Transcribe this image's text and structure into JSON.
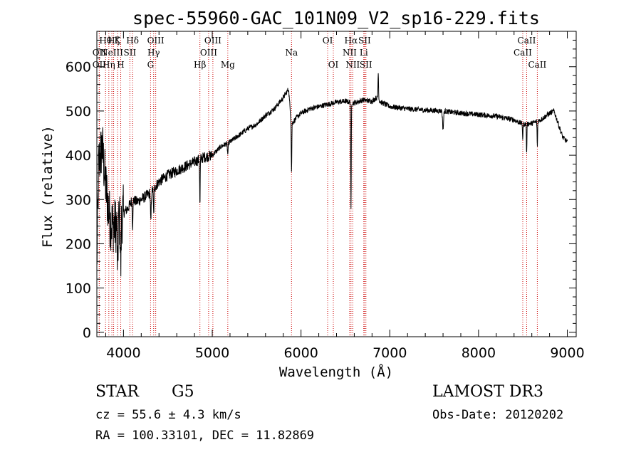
{
  "chart_data": {
    "type": "line",
    "title": "spec-55960-GAC_101N09_V2_sp16-229.fits",
    "xlabel": "Wavelength (Å)",
    "ylabel": "Flux (relative)",
    "xlim": [
      3700,
      9100
    ],
    "ylim": [
      -10,
      680
    ],
    "xticks": [
      4000,
      5000,
      6000,
      7000,
      8000,
      9000
    ],
    "yticks": [
      0,
      100,
      200,
      300,
      400,
      500,
      600
    ],
    "grid": false,
    "spectrum_anchors": [
      [
        3700,
        150
      ],
      [
        3720,
        380
      ],
      [
        3760,
        420
      ],
      [
        3800,
        330
      ],
      [
        3850,
        250
      ],
      [
        3900,
        240
      ],
      [
        3950,
        250
      ],
      [
        4000,
        270
      ],
      [
        4050,
        280
      ],
      [
        4100,
        300
      ],
      [
        4150,
        295
      ],
      [
        4200,
        300
      ],
      [
        4300,
        315
      ],
      [
        4400,
        340
      ],
      [
        4500,
        355
      ],
      [
        4600,
        365
      ],
      [
        4700,
        375
      ],
      [
        4800,
        385
      ],
      [
        4900,
        395
      ],
      [
        5000,
        400
      ],
      [
        5100,
        420
      ],
      [
        5200,
        430
      ],
      [
        5300,
        445
      ],
      [
        5400,
        460
      ],
      [
        5500,
        470
      ],
      [
        5600,
        490
      ],
      [
        5700,
        505
      ],
      [
        5800,
        530
      ],
      [
        5860,
        550
      ],
      [
        5890,
        470
      ],
      [
        5950,
        485
      ],
      [
        6000,
        495
      ],
      [
        6100,
        505
      ],
      [
        6200,
        510
      ],
      [
        6300,
        515
      ],
      [
        6400,
        520
      ],
      [
        6500,
        522
      ],
      [
        6600,
        518
      ],
      [
        6700,
        525
      ],
      [
        6800,
        522
      ],
      [
        6850,
        530
      ],
      [
        6900,
        520
      ],
      [
        7000,
        510
      ],
      [
        7200,
        505
      ],
      [
        7400,
        502
      ],
      [
        7600,
        500
      ],
      [
        7800,
        495
      ],
      [
        8000,
        492
      ],
      [
        8200,
        488
      ],
      [
        8400,
        480
      ],
      [
        8500,
        470
      ],
      [
        8600,
        472
      ],
      [
        8700,
        480
      ],
      [
        8800,
        495
      ],
      [
        8850,
        500
      ],
      [
        8900,
        470
      ],
      [
        8950,
        440
      ],
      [
        9000,
        430
      ]
    ],
    "absorption_features": [
      {
        "x": 3934,
        "depth": 120,
        "width": 6
      },
      {
        "x": 3969,
        "depth": 110,
        "width": 6
      },
      {
        "x": 4102,
        "depth": 60,
        "width": 5
      },
      {
        "x": 4308,
        "depth": 70,
        "width": 6
      },
      {
        "x": 4340,
        "depth": 60,
        "width": 5
      },
      {
        "x": 4861,
        "depth": 110,
        "width": 4
      },
      {
        "x": 5175,
        "depth": 25,
        "width": 6
      },
      {
        "x": 5893,
        "depth": 110,
        "width": 4
      },
      {
        "x": 6563,
        "depth": 250,
        "width": 4
      },
      {
        "x": 7600,
        "depth": 40,
        "width": 8
      },
      {
        "x": 8498,
        "depth": 35,
        "width": 4
      },
      {
        "x": 8542,
        "depth": 70,
        "width": 4
      },
      {
        "x": 8662,
        "depth": 60,
        "width": 4
      }
    ],
    "emission_features": [
      {
        "x": 6870,
        "height": 60,
        "width": 5
      }
    ],
    "line_markers": [
      {
        "x": 3727,
        "row": 1,
        "label": "OII"
      },
      {
        "x": 3727,
        "row": 2,
        "label": "OII"
      },
      {
        "x": 3798,
        "row": 0,
        "label": "Hθ"
      },
      {
        "x": 3835,
        "row": 2,
        "label": "Hη"
      },
      {
        "x": 3869,
        "row": 1,
        "label": "NeIII"
      },
      {
        "x": 3889,
        "row": 0,
        "label": "Hζ"
      },
      {
        "x": 3933,
        "row": 0,
        "label": "K"
      },
      {
        "x": 3969,
        "row": 2,
        "label": "H"
      },
      {
        "x": 4072,
        "row": 1,
        "label": "SII"
      },
      {
        "x": 4102,
        "row": 0,
        "label": "Hδ"
      },
      {
        "x": 4305,
        "row": 2,
        "label": "G"
      },
      {
        "x": 4340,
        "row": 1,
        "label": "Hγ"
      },
      {
        "x": 4363,
        "row": 0,
        "label": "OIII"
      },
      {
        "x": 4861,
        "row": 2,
        "label": "Hβ"
      },
      {
        "x": 4959,
        "row": 1,
        "label": "OIII"
      },
      {
        "x": 5007,
        "row": 0,
        "label": "OIII"
      },
      {
        "x": 5175,
        "row": 2,
        "label": "Mg"
      },
      {
        "x": 5893,
        "row": 1,
        "label": "Na"
      },
      {
        "x": 6300,
        "row": 0,
        "label": "OI"
      },
      {
        "x": 6364,
        "row": 2,
        "label": "OI"
      },
      {
        "x": 6548,
        "row": 1,
        "label": "NII"
      },
      {
        "x": 6563,
        "row": 0,
        "label": "Hα"
      },
      {
        "x": 6583,
        "row": 2,
        "label": "NII"
      },
      {
        "x": 6707,
        "row": 1,
        "label": "Li"
      },
      {
        "x": 6716,
        "row": 0,
        "label": "SII"
      },
      {
        "x": 6731,
        "row": 2,
        "label": "SII"
      },
      {
        "x": 8498,
        "row": 1,
        "label": "CaII"
      },
      {
        "x": 8542,
        "row": 0,
        "label": "CaII"
      },
      {
        "x": 8662,
        "row": 2,
        "label": "CaII"
      }
    ],
    "colors": {
      "spectrum": "#000000",
      "marker_line": "#cc0000",
      "axes": "#000000"
    }
  },
  "info": {
    "object_class": "STAR",
    "subclass": "G5",
    "survey": "LAMOST DR3",
    "redshift_text": "cz = 55.6 ± 4.3 km/s",
    "obs_date_text": "Obs-Date: 20120202",
    "coords_text": "RA = 100.33101, DEC =  11.82869"
  }
}
